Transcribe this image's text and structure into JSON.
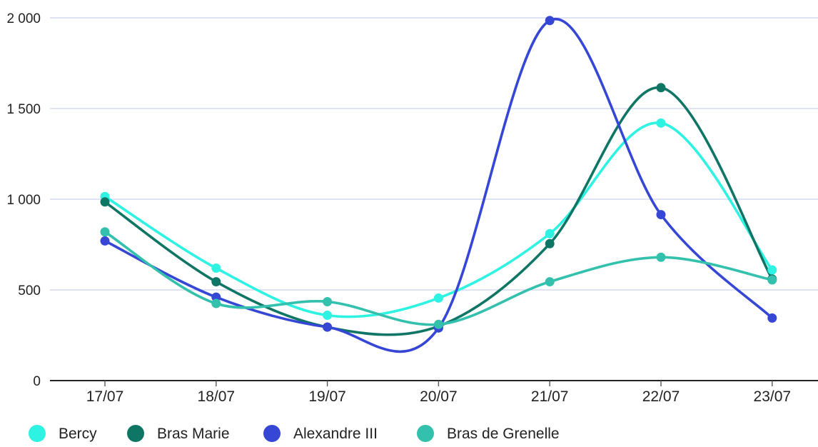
{
  "chart_data": {
    "type": "line",
    "categories": [
      "17/07",
      "18/07",
      "19/07",
      "20/07",
      "21/07",
      "22/07",
      "23/07"
    ],
    "ylim": [
      0,
      2000
    ],
    "yticks": [
      {
        "value": 0,
        "label": "0"
      },
      {
        "value": 500,
        "label": "500"
      },
      {
        "value": 1000,
        "label": "1 000"
      },
      {
        "value": 1500,
        "label": "1 500"
      },
      {
        "value": 2000,
        "label": "2 000"
      }
    ],
    "grid": true,
    "legend_position": "bottom-left",
    "series": [
      {
        "name": "Bercy",
        "color": "#2ef2e2",
        "values": [
          1015,
          620,
          360,
          455,
          810,
          1420,
          610
        ]
      },
      {
        "name": "Bras Marie",
        "color": "#0f7565",
        "values": [
          985,
          545,
          295,
          300,
          755,
          1615,
          560
        ]
      },
      {
        "name": "Alexandre III",
        "color": "#3547d4",
        "values": [
          770,
          460,
          295,
          290,
          1985,
          915,
          345
        ]
      },
      {
        "name": "Bras de Grenelle",
        "color": "#33c1ad",
        "values": [
          820,
          425,
          435,
          310,
          545,
          680,
          555
        ]
      }
    ]
  }
}
